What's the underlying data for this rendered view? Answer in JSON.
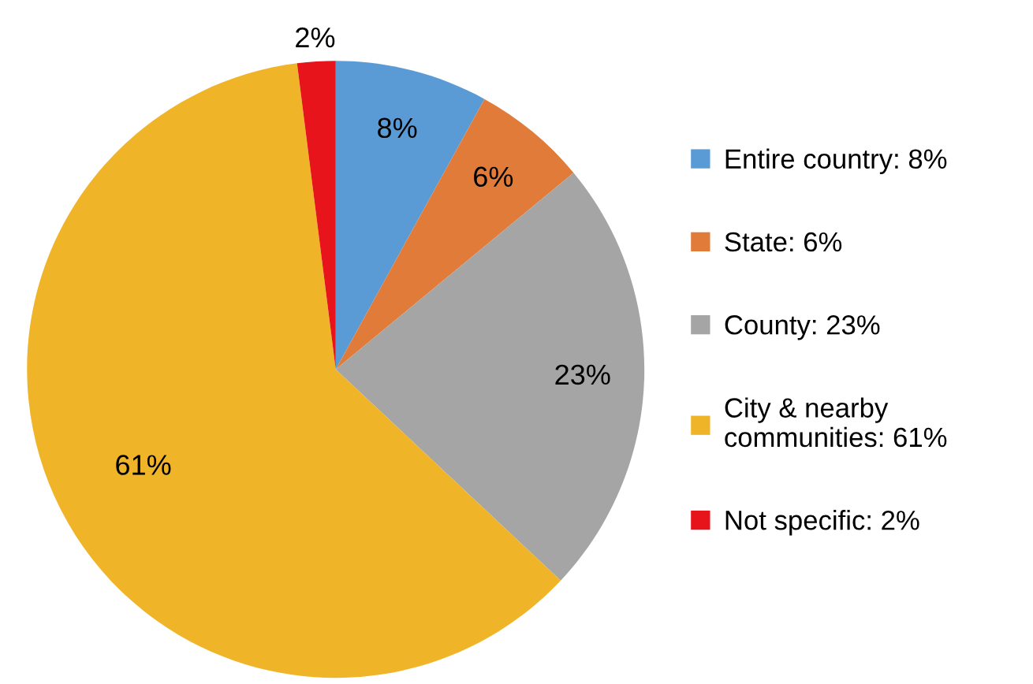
{
  "chart_data": {
    "type": "pie",
    "categories": [
      "Entire country: 8%",
      "State: 6%",
      "County: 23%",
      "City & nearby communities: 61%",
      "Not specific: 2%"
    ],
    "values": [
      8,
      6,
      23,
      61,
      2
    ],
    "colors": [
      "#5b9bd5",
      "#e07b39",
      "#a5a5a5",
      "#f0b429",
      "#e8141b"
    ],
    "value_labels": [
      "8%",
      "6%",
      "23%",
      "61%",
      "2%"
    ],
    "legend": "right"
  }
}
